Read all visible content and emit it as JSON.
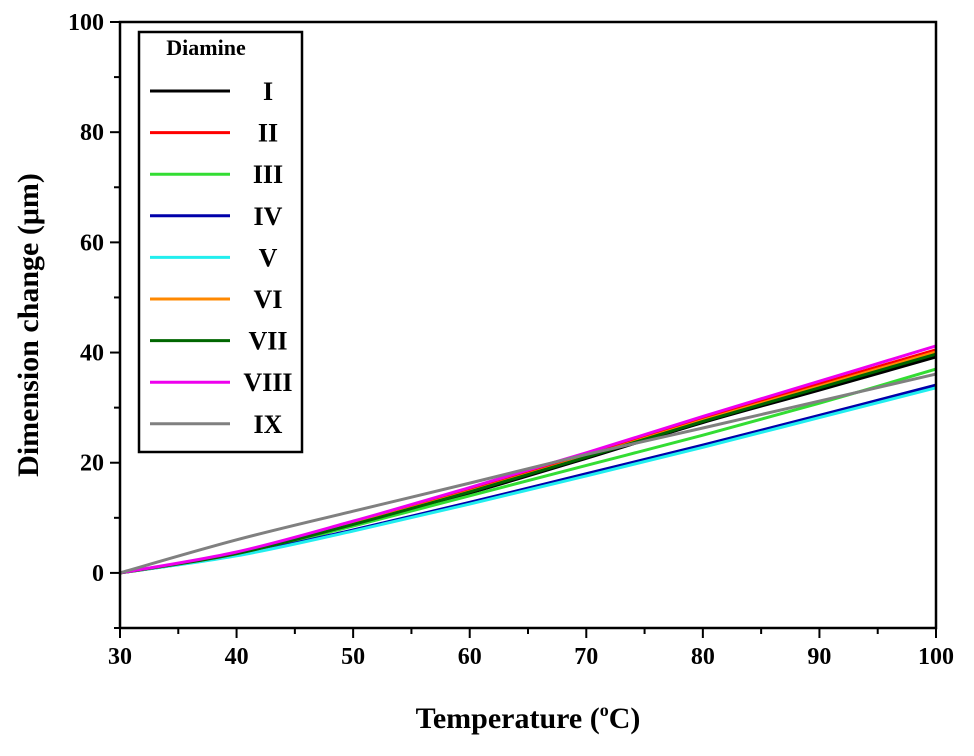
{
  "chart_data": {
    "type": "line",
    "title": "",
    "xlabel": "Temperature (",
    "xlabel_sup": "o",
    "xlabel_end": "C)",
    "ylabel": "Dimension change (μm)",
    "xlim": [
      30,
      100
    ],
    "ylim": [
      -10,
      100
    ],
    "xticks": [
      30,
      40,
      50,
      60,
      70,
      80,
      90,
      100
    ],
    "yticks": [
      0,
      20,
      40,
      60,
      80,
      100
    ],
    "grid": false,
    "legend": {
      "title": "Diamine",
      "placement": "top-left"
    },
    "x": [
      30,
      40,
      50,
      60,
      70,
      80,
      90,
      100
    ],
    "series": [
      {
        "name": "I",
        "color": "#000000",
        "values": [
          0,
          3.5,
          8.7,
          14.5,
          20.8,
          27.3,
          33.2,
          39.2
        ]
      },
      {
        "name": "II",
        "color": "#ff0000",
        "values": [
          0,
          3.6,
          9.0,
          15.0,
          21.3,
          28.0,
          34.3,
          40.5
        ]
      },
      {
        "name": "III",
        "color": "#33dd33",
        "values": [
          0,
          3.4,
          8.5,
          14.0,
          19.5,
          25.0,
          30.8,
          37.0
        ]
      },
      {
        "name": "IV",
        "color": "#0000aa",
        "values": [
          0,
          3.2,
          7.8,
          12.8,
          18.0,
          23.2,
          28.6,
          34.1
        ]
      },
      {
        "name": "V",
        "color": "#22eeee",
        "values": [
          0,
          3.1,
          7.6,
          12.5,
          17.6,
          22.8,
          28.2,
          33.6
        ]
      },
      {
        "name": "VI",
        "color": "#ff8800",
        "values": [
          0,
          3.5,
          8.9,
          14.8,
          21.1,
          27.7,
          33.9,
          40.1
        ]
      },
      {
        "name": "VII",
        "color": "#006600",
        "values": [
          0,
          3.5,
          8.8,
          14.7,
          21.0,
          27.5,
          33.6,
          39.7
        ]
      },
      {
        "name": "VIII",
        "color": "#ee00ee",
        "values": [
          0,
          3.8,
          9.4,
          15.5,
          21.8,
          28.4,
          34.8,
          41.2
        ]
      },
      {
        "name": "IX",
        "color": "#808080",
        "values": [
          0,
          6.0,
          11.2,
          16.3,
          21.5,
          26.3,
          31.2,
          36.1
        ]
      }
    ]
  }
}
